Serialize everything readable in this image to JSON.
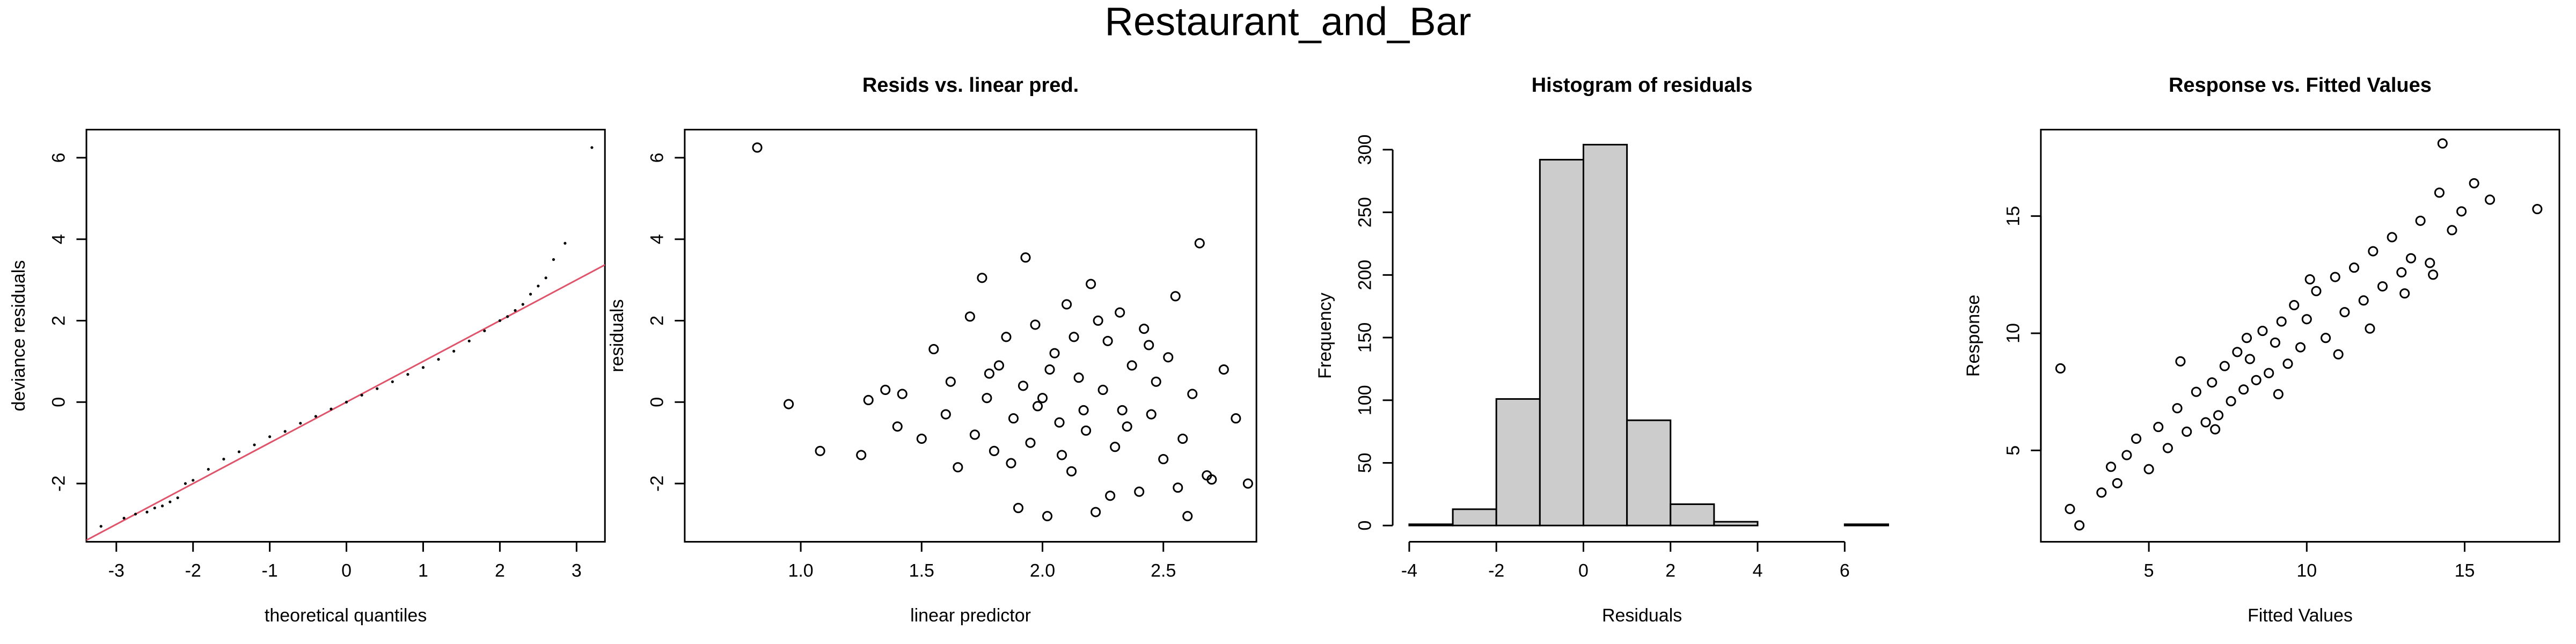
{
  "title": "Restaurant_and_Bar",
  "chart_data": [
    {
      "type": "scatter",
      "marker": "dot",
      "color": "#000000",
      "xlabel": "theoretical quantiles",
      "ylabel": "deviance residuals",
      "x": [
        -3.2,
        -2.9,
        -2.75,
        -2.6,
        -2.5,
        -2.4,
        -2.3,
        -2.2,
        -2.1,
        -2.0,
        -1.8,
        -1.6,
        -1.4,
        -1.2,
        -1.0,
        -0.8,
        -0.6,
        -0.4,
        -0.2,
        0,
        0.2,
        0.4,
        0.6,
        0.8,
        1.0,
        1.2,
        1.4,
        1.6,
        1.8,
        2.0,
        2.1,
        2.2,
        2.3,
        2.4,
        2.5,
        2.6,
        2.7,
        2.85,
        3.2
      ],
      "values": [
        -3.05,
        -2.85,
        -2.75,
        -2.7,
        -2.6,
        -2.55,
        -2.45,
        -2.35,
        -2.0,
        -1.92,
        -1.65,
        -1.4,
        -1.22,
        -1.05,
        -0.85,
        -0.72,
        -0.52,
        -0.35,
        -0.17,
        0,
        0.17,
        0.33,
        0.5,
        0.68,
        0.85,
        1.05,
        1.25,
        1.5,
        1.75,
        2.0,
        2.1,
        2.25,
        2.4,
        2.65,
        2.85,
        3.05,
        3.5,
        3.9,
        6.25
      ],
      "qqline": {
        "intercept": 0,
        "slope": 1.0,
        "color": "#df536b"
      },
      "xlim": [
        -3.39,
        3.37
      ],
      "ylim": [
        -3.43,
        6.69
      ],
      "xticks": [
        -3,
        -2,
        -1,
        0,
        1,
        2,
        3
      ],
      "yticks": [
        -2,
        0,
        2,
        4,
        6
      ]
    },
    {
      "type": "scatter",
      "marker": "circle",
      "color": "#000000",
      "title": "Resids vs. linear pred.",
      "xlabel": "linear predictor",
      "ylabel": "residuals",
      "x": [
        0.82,
        0.95,
        1.08,
        1.25,
        1.28,
        1.35,
        1.4,
        1.42,
        1.5,
        1.55,
        1.6,
        1.62,
        1.65,
        1.7,
        1.72,
        1.75,
        1.78,
        1.8,
        1.82,
        1.85,
        1.88,
        1.9,
        1.92,
        1.93,
        1.95,
        1.97,
        2.0,
        2.02,
        2.05,
        2.07,
        2.1,
        2.12,
        2.15,
        2.17,
        2.2,
        2.22,
        2.25,
        2.27,
        2.3,
        2.32,
        2.35,
        2.37,
        2.4,
        2.42,
        2.45,
        2.47,
        2.5,
        2.52,
        2.55,
        2.58,
        2.6,
        2.62,
        2.65,
        2.68,
        2.7,
        2.75,
        2.8,
        2.85,
        1.98,
        2.03,
        2.08,
        2.13,
        2.18,
        2.23,
        2.28,
        2.33,
        1.87,
        1.77,
        2.44,
        2.56
      ],
      "values": [
        6.25,
        -0.05,
        -1.2,
        -1.3,
        0.05,
        0.3,
        -0.6,
        0.2,
        -0.9,
        1.3,
        -0.3,
        0.5,
        -1.6,
        2.1,
        -0.8,
        3.05,
        0.7,
        -1.2,
        0.9,
        1.6,
        -0.4,
        -2.6,
        0.4,
        3.55,
        -1.0,
        1.9,
        0.1,
        -2.8,
        1.2,
        -0.5,
        2.4,
        -1.7,
        0.6,
        -0.2,
        2.9,
        -2.7,
        0.3,
        1.5,
        -1.1,
        2.2,
        -0.6,
        0.9,
        -2.2,
        1.8,
        -0.3,
        0.5,
        -1.4,
        1.1,
        2.6,
        -0.9,
        -2.8,
        0.2,
        3.9,
        -1.8,
        -1.9,
        0.8,
        -0.4,
        -2.0,
        -0.1,
        0.8,
        -1.3,
        1.6,
        -0.7,
        2.0,
        -2.3,
        -0.2,
        -1.5,
        0.1,
        1.4,
        -2.1
      ],
      "xlim": [
        0.52,
        2.885
      ],
      "ylim": [
        -3.43,
        6.69
      ],
      "xticks": [
        {
          "value": 1,
          "label": "1.0"
        },
        1.5,
        {
          "value": 2,
          "label": "2.0"
        },
        2.5
      ],
      "yticks": [
        -2,
        0,
        2,
        4,
        6
      ]
    },
    {
      "type": "histogram",
      "color": "#cccccc",
      "title": "Histogram of residuals",
      "xlabel": "Residuals",
      "ylabel": "Frequency",
      "bins": [
        -4,
        -3,
        -2,
        -1,
        0,
        1,
        2,
        3,
        4,
        5,
        6,
        7
      ],
      "values": [
        1,
        13,
        101,
        292,
        304,
        84,
        17,
        3,
        0,
        0,
        1
      ],
      "xlim": [
        -4.38,
        7.07
      ],
      "ylim": [
        -13,
        316
      ],
      "xticks": [
        -4,
        -2,
        0,
        2,
        4,
        6
      ],
      "yticks": [
        0,
        50,
        100,
        150,
        200,
        250,
        300
      ]
    },
    {
      "type": "scatter",
      "marker": "circle",
      "color": "#000000",
      "title": "Response vs. Fitted Values",
      "xlabel": "Fitted Values",
      "ylabel": "Response",
      "x": [
        2.2,
        2.5,
        2.8,
        3.5,
        3.8,
        4.0,
        4.3,
        4.6,
        5.0,
        5.3,
        5.6,
        5.9,
        6.2,
        6.5,
        6.8,
        7.0,
        7.2,
        7.4,
        7.6,
        7.8,
        8.0,
        8.2,
        8.4,
        8.6,
        8.8,
        9.0,
        9.2,
        9.4,
        9.6,
        9.8,
        10.0,
        10.3,
        10.6,
        10.9,
        11.2,
        11.5,
        11.8,
        12.1,
        12.4,
        12.7,
        13.0,
        13.3,
        13.6,
        13.9,
        14.2,
        14.3,
        14.6,
        14.9,
        15.3,
        15.8,
        17.3,
        6.0,
        7.1,
        8.1,
        9.1,
        10.1,
        11.0,
        12.0,
        13.1,
        14.0
      ],
      "values": [
        8.5,
        2.5,
        1.8,
        3.2,
        4.3,
        3.6,
        4.8,
        5.5,
        4.2,
        6.0,
        5.1,
        6.8,
        5.8,
        7.5,
        6.2,
        7.9,
        6.5,
        8.6,
        7.1,
        9.2,
        7.6,
        8.9,
        8.0,
        10.1,
        8.3,
        9.6,
        10.5,
        8.7,
        11.2,
        9.4,
        10.6,
        11.8,
        9.8,
        12.4,
        10.9,
        12.8,
        11.4,
        13.5,
        12.0,
        14.1,
        12.6,
        13.2,
        14.8,
        13.0,
        16.0,
        18.1,
        14.4,
        15.2,
        16.4,
        15.7,
        15.3,
        8.8,
        5.9,
        9.8,
        7.4,
        12.3,
        9.1,
        10.2,
        11.7,
        12.5
      ],
      "xlim": [
        1.58,
        18.0
      ],
      "ylim": [
        1.1,
        18.69
      ],
      "xticks": [
        5,
        10,
        15
      ],
      "yticks": [
        5,
        10,
        15
      ]
    }
  ]
}
